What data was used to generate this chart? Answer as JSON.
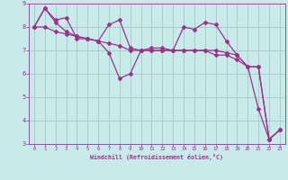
{
  "xlabel": "Windchill (Refroidissement éolien,°C)",
  "background_color": "#c8eaea",
  "grid_color": "#aacccc",
  "line_color": "#993388",
  "spine_color": "#8855aa",
  "tick_color": "#993388",
  "xlim": [
    -0.5,
    23.5
  ],
  "ylim": [
    3,
    9
  ],
  "yticks": [
    3,
    4,
    5,
    6,
    7,
    8,
    9
  ],
  "xticks": [
    0,
    1,
    2,
    3,
    4,
    5,
    6,
    7,
    8,
    9,
    10,
    11,
    12,
    13,
    14,
    15,
    16,
    17,
    18,
    19,
    20,
    21,
    22,
    23
  ],
  "series": [
    [
      8.0,
      8.8,
      8.2,
      7.8,
      7.6,
      7.5,
      7.4,
      6.9,
      5.8,
      6.0,
      7.0,
      7.0,
      7.0,
      7.0,
      8.0,
      7.9,
      8.2,
      8.1,
      7.4,
      6.8,
      6.3,
      4.5,
      3.2,
      3.6
    ],
    [
      8.0,
      8.8,
      8.3,
      8.4,
      7.5,
      7.5,
      7.4,
      8.1,
      8.3,
      7.1,
      7.0,
      7.1,
      7.1,
      7.0,
      7.0,
      7.0,
      7.0,
      7.0,
      6.9,
      6.8,
      6.3,
      6.3,
      3.2,
      3.6
    ],
    [
      8.0,
      8.0,
      7.8,
      7.7,
      7.6,
      7.5,
      7.4,
      7.3,
      7.2,
      7.0,
      7.0,
      7.0,
      7.0,
      7.0,
      7.0,
      7.0,
      7.0,
      6.8,
      6.8,
      6.6,
      6.3,
      6.3,
      3.2,
      3.6
    ]
  ]
}
